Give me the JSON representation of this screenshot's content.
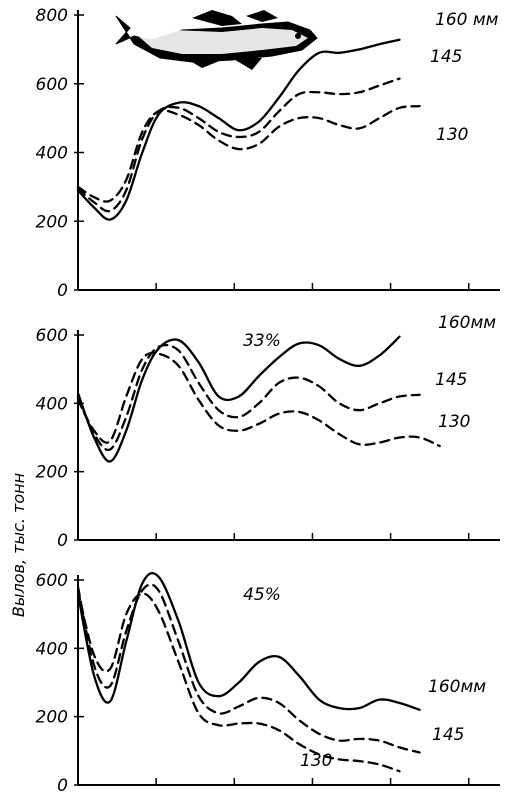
{
  "ylabel": "Вылов, тыс. тонн",
  "chart_data": [
    {
      "type": "line",
      "annotation": "",
      "ylim": [
        0,
        800
      ],
      "yticks": [
        "0",
        "200",
        "400",
        "600",
        "800"
      ],
      "x": [
        0,
        0.4,
        0.8,
        1.2,
        1.6,
        2,
        2.5,
        3,
        3.5,
        4,
        4.5,
        5,
        5.5,
        6,
        6.5,
        7,
        7.5,
        8,
        8.5,
        9,
        9.5,
        10,
        10.5
      ],
      "series": [
        {
          "name": "160 мм",
          "style": "solid",
          "values": [
            290,
            240,
            205,
            260,
            400,
            510,
            545,
            535,
            500,
            465,
            490,
            560,
            640,
            690,
            690,
            700,
            715,
            728,
            null,
            null,
            null,
            null,
            null
          ]
        },
        {
          "name": "145",
          "style": "dashed",
          "values": [
            295,
            255,
            230,
            290,
            440,
            520,
            530,
            500,
            460,
            445,
            460,
            520,
            570,
            575,
            570,
            575,
            595,
            615,
            null,
            null,
            null,
            null,
            null
          ]
        },
        {
          "name": "130",
          "style": "dashed",
          "values": [
            300,
            270,
            260,
            320,
            460,
            520,
            510,
            480,
            435,
            410,
            425,
            475,
            500,
            500,
            480,
            470,
            500,
            530,
            535,
            null,
            null,
            null,
            null
          ]
        }
      ]
    },
    {
      "type": "line",
      "annotation": "33%",
      "ylim": [
        0,
        600
      ],
      "yticks": [
        "0",
        "200",
        "400",
        "600"
      ],
      "x": [
        0,
        0.4,
        0.8,
        1.2,
        1.6,
        2,
        2.5,
        3,
        3.5,
        4,
        4.5,
        5,
        5.5,
        6,
        6.5,
        7,
        7.5,
        8,
        8.5,
        9,
        9.5,
        10,
        10.5
      ],
      "series": [
        {
          "name": "160 мм",
          "style": "solid",
          "values": [
            430,
            300,
            230,
            320,
            470,
            560,
            585,
            520,
            420,
            420,
            480,
            535,
            575,
            570,
            530,
            510,
            540,
            595,
            null,
            null,
            null,
            null,
            null
          ]
        },
        {
          "name": "145",
          "style": "dashed",
          "values": [
            420,
            310,
            265,
            360,
            500,
            565,
            555,
            460,
            380,
            360,
            400,
            460,
            475,
            450,
            400,
            380,
            400,
            420,
            425,
            null,
            null,
            null,
            null
          ]
        },
        {
          "name": "130",
          "style": "dashed",
          "values": [
            410,
            320,
            290,
            420,
            530,
            545,
            510,
            410,
            335,
            320,
            340,
            370,
            375,
            350,
            310,
            280,
            285,
            300,
            300,
            275,
            null,
            null,
            null
          ]
        }
      ],
      "series_labels": [
        "160мм",
        "145",
        "130"
      ]
    },
    {
      "type": "line",
      "annotation": "45%",
      "ylim": [
        0,
        600
      ],
      "yticks": [
        "0",
        "200",
        "400",
        "600"
      ],
      "x": [
        0,
        0.4,
        0.8,
        1.2,
        1.6,
        2,
        2.5,
        3,
        3.5,
        4,
        4.5,
        5,
        5.5,
        6,
        6.5,
        7,
        7.5,
        8,
        8.5,
        9,
        9.5,
        10,
        10.5
      ],
      "series": [
        {
          "name": "160 мм",
          "style": "solid",
          "values": [
            560,
            320,
            245,
            420,
            590,
            610,
            480,
            300,
            260,
            300,
            360,
            375,
            320,
            250,
            225,
            225,
            250,
            240,
            220,
            null,
            null,
            null,
            null
          ]
        },
        {
          "name": "145",
          "style": "dashed",
          "values": [
            580,
            350,
            290,
            450,
            570,
            570,
            420,
            260,
            210,
            230,
            255,
            240,
            190,
            150,
            130,
            135,
            130,
            110,
            95,
            null,
            null,
            null,
            null
          ]
        },
        {
          "name": "130",
          "style": "dashed",
          "values": [
            570,
            380,
            340,
            500,
            560,
            510,
            360,
            210,
            175,
            180,
            180,
            160,
            120,
            90,
            75,
            70,
            60,
            40,
            null,
            null,
            null,
            null,
            null
          ]
        }
      ],
      "series_labels": [
        "160мм",
        "145",
        "130"
      ]
    }
  ],
  "top_labels": [
    "160 мм",
    "145",
    "130"
  ]
}
